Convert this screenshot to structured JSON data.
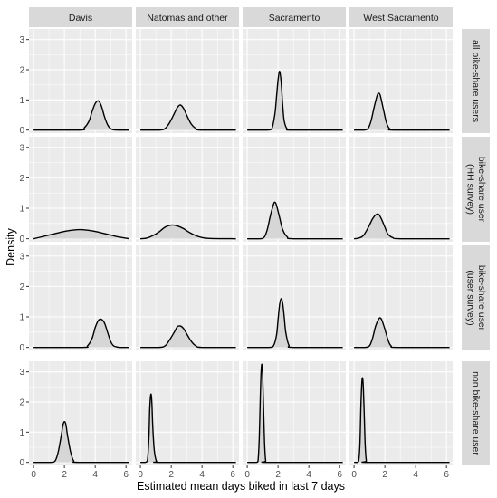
{
  "chart_data": {
    "type": "area",
    "facet_layout": "grid",
    "xlabel": "Estimated mean days biked in last 7 days",
    "ylabel": "Density",
    "xlim": [
      -0.3,
      6.4
    ],
    "ylim": [
      -0.1,
      3.35
    ],
    "x_ticks": [
      0,
      2,
      4,
      6
    ],
    "x_minor_ticks": [
      1,
      3,
      5
    ],
    "y_ticks": [
      0,
      1,
      2,
      3
    ],
    "y_minor_ticks": [
      0.5,
      1.5,
      2.5
    ],
    "grid": true,
    "legend": "none",
    "colors": {
      "fill": "#d6d6d6",
      "line": "#000000",
      "panel": "#ebebeb",
      "strip": "#d9d9d9"
    },
    "columns": [
      "Davis",
      "Natomas and other",
      "Sacramento",
      "West Sacramento"
    ],
    "rows": [
      [
        "all bike-share users"
      ],
      [
        "bike-share user",
        "(HH survey)"
      ],
      [
        "bike-share user",
        "(user survey)"
      ],
      [
        "non bike-share user"
      ]
    ],
    "panels": [
      [
        {
          "x": [
            0,
            3.0,
            3.3,
            3.6,
            3.8,
            4.0,
            4.2,
            4.4,
            4.6,
            4.8,
            5.0,
            5.3,
            6.2
          ],
          "y": [
            0,
            0,
            0.08,
            0.3,
            0.62,
            0.88,
            0.97,
            0.8,
            0.45,
            0.18,
            0.05,
            0.005,
            0
          ]
        },
        {
          "x": [
            0,
            1.2,
            1.6,
            1.9,
            2.2,
            2.4,
            2.6,
            2.8,
            3.0,
            3.3,
            3.6,
            3.9,
            6.2
          ],
          "y": [
            0,
            0,
            0.05,
            0.25,
            0.55,
            0.75,
            0.83,
            0.72,
            0.5,
            0.2,
            0.05,
            0,
            0
          ]
        },
        {
          "x": [
            0,
            1.3,
            1.6,
            1.8,
            1.9,
            2.0,
            2.1,
            2.2,
            2.3,
            2.4,
            2.6,
            2.9,
            6.2
          ],
          "y": [
            0,
            0,
            0.05,
            0.55,
            1.1,
            1.65,
            1.95,
            1.6,
            0.85,
            0.3,
            0.03,
            0,
            0
          ]
        },
        {
          "x": [
            0,
            0.6,
            0.9,
            1.1,
            1.3,
            1.5,
            1.6,
            1.7,
            1.9,
            2.1,
            2.3,
            2.6,
            6.2
          ],
          "y": [
            0,
            0,
            0.05,
            0.3,
            0.75,
            1.15,
            1.22,
            1.15,
            0.7,
            0.25,
            0.05,
            0,
            0
          ]
        }
      ],
      [
        {
          "x": [
            0,
            0.5,
            1.0,
            1.5,
            2.0,
            2.5,
            3.0,
            3.5,
            4.0,
            4.5,
            5.0,
            5.5,
            6.2
          ],
          "y": [
            0,
            0.06,
            0.12,
            0.18,
            0.24,
            0.28,
            0.3,
            0.28,
            0.24,
            0.18,
            0.12,
            0.06,
            0
          ]
        },
        {
          "x": [
            0,
            0.4,
            0.8,
            1.2,
            1.6,
            2.0,
            2.4,
            2.8,
            3.2,
            3.6,
            4.0,
            4.5,
            6.2
          ],
          "y": [
            0,
            0.02,
            0.1,
            0.22,
            0.38,
            0.45,
            0.42,
            0.33,
            0.2,
            0.1,
            0.04,
            0.01,
            0
          ]
        },
        {
          "x": [
            0,
            0.8,
            1.1,
            1.3,
            1.5,
            1.7,
            1.8,
            1.9,
            2.1,
            2.3,
            2.6,
            3.0,
            6.2
          ],
          "y": [
            0,
            0,
            0.05,
            0.3,
            0.75,
            1.12,
            1.2,
            1.1,
            0.7,
            0.3,
            0.06,
            0,
            0
          ]
        },
        {
          "x": [
            0,
            0.3,
            0.6,
            0.9,
            1.2,
            1.4,
            1.6,
            1.8,
            2.0,
            2.2,
            2.5,
            3.0,
            6.2
          ],
          "y": [
            0,
            0.02,
            0.1,
            0.35,
            0.65,
            0.78,
            0.8,
            0.62,
            0.38,
            0.15,
            0.04,
            0,
            0
          ]
        }
      ],
      [
        {
          "x": [
            0,
            3.2,
            3.5,
            3.8,
            4.0,
            4.2,
            4.4,
            4.6,
            4.8,
            5.0,
            5.2,
            5.6,
            6.2
          ],
          "y": [
            0,
            0,
            0.05,
            0.3,
            0.65,
            0.88,
            0.92,
            0.8,
            0.5,
            0.2,
            0.05,
            0,
            0
          ]
        },
        {
          "x": [
            0,
            1.2,
            1.6,
            1.9,
            2.2,
            2.4,
            2.6,
            2.8,
            3.0,
            3.3,
            3.6,
            4.0,
            6.2
          ],
          "y": [
            0,
            0,
            0.05,
            0.25,
            0.5,
            0.68,
            0.7,
            0.62,
            0.45,
            0.2,
            0.05,
            0,
            0
          ]
        },
        {
          "x": [
            0,
            1.4,
            1.7,
            1.9,
            2.0,
            2.1,
            2.2,
            2.3,
            2.4,
            2.5,
            2.7,
            3.0,
            6.2
          ],
          "y": [
            0,
            0,
            0.05,
            0.4,
            0.9,
            1.4,
            1.6,
            1.45,
            1.0,
            0.5,
            0.08,
            0,
            0
          ]
        },
        {
          "x": [
            0,
            0.7,
            1.0,
            1.2,
            1.4,
            1.6,
            1.7,
            1.8,
            2.0,
            2.2,
            2.4,
            2.8,
            6.2
          ],
          "y": [
            0,
            0,
            0.05,
            0.3,
            0.7,
            0.93,
            0.97,
            0.9,
            0.6,
            0.25,
            0.05,
            0,
            0
          ]
        }
      ],
      [
        {
          "x": [
            0,
            1.1,
            1.4,
            1.6,
            1.8,
            1.9,
            2.0,
            2.1,
            2.2,
            2.4,
            2.6,
            2.9,
            6.2
          ],
          "y": [
            0,
            0,
            0.05,
            0.35,
            0.9,
            1.22,
            1.35,
            1.25,
            0.9,
            0.35,
            0.05,
            0,
            0
          ]
        },
        {
          "x": [
            0,
            0.3,
            0.45,
            0.55,
            0.6,
            0.65,
            0.7,
            0.75,
            0.8,
            0.9,
            1.05,
            1.3,
            6.2
          ],
          "y": [
            0,
            0,
            0.05,
            0.8,
            1.7,
            2.15,
            2.25,
            1.9,
            1.2,
            0.4,
            0.03,
            0,
            0
          ]
        },
        {
          "x": [
            0,
            0.6,
            0.7,
            0.78,
            0.85,
            0.9,
            0.95,
            1.0,
            1.05,
            1.12,
            1.2,
            1.35,
            6.2
          ],
          "y": [
            0,
            0,
            0.05,
            0.8,
            2.2,
            3.0,
            3.25,
            2.9,
            2.0,
            0.7,
            0.05,
            0,
            0
          ]
        },
        {
          "x": [
            0,
            0.2,
            0.3,
            0.38,
            0.44,
            0.5,
            0.55,
            0.6,
            0.66,
            0.72,
            0.8,
            0.95,
            6.2
          ],
          "y": [
            0,
            0,
            0.05,
            0.6,
            1.8,
            2.6,
            2.8,
            2.5,
            1.6,
            0.6,
            0.05,
            0,
            0
          ]
        }
      ]
    ]
  }
}
